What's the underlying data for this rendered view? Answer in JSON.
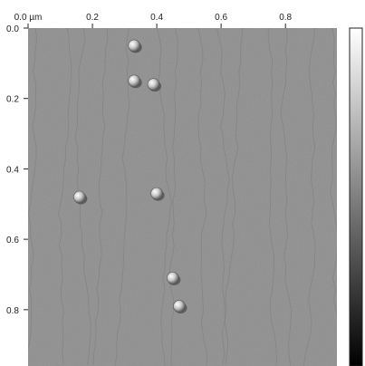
{
  "scan": {
    "x_axis": {
      "ticks": [
        {
          "value": 0.0,
          "label": "0.0 µm"
        },
        {
          "value": 0.2,
          "label": "0.2"
        },
        {
          "value": 0.4,
          "label": "0.4"
        },
        {
          "value": 0.6,
          "label": "0.6"
        },
        {
          "value": 0.8,
          "label": "0.8"
        }
      ],
      "range": [
        0,
        0.96
      ]
    },
    "y_axis": {
      "ticks": [
        {
          "value": 0.0,
          "label": "0.0"
        },
        {
          "value": 0.2,
          "label": "0.2"
        },
        {
          "value": 0.4,
          "label": "0.4"
        },
        {
          "value": 0.6,
          "label": "0.6"
        },
        {
          "value": 0.8,
          "label": "0.8"
        }
      ],
      "range": [
        0,
        0.96
      ]
    },
    "particles": [
      {
        "x": 0.33,
        "y": 0.05
      },
      {
        "x": 0.33,
        "y": 0.15
      },
      {
        "x": 0.39,
        "y": 0.16
      },
      {
        "x": 0.16,
        "y": 0.48
      },
      {
        "x": 0.4,
        "y": 0.47
      },
      {
        "x": 0.45,
        "y": 0.71
      },
      {
        "x": 0.47,
        "y": 0.79
      }
    ],
    "colors": {
      "background": "#8f8f8f",
      "step_edge": "#7c7c7c",
      "colorbar_top": "#ffffff",
      "colorbar_bottom": "#000000"
    }
  }
}
